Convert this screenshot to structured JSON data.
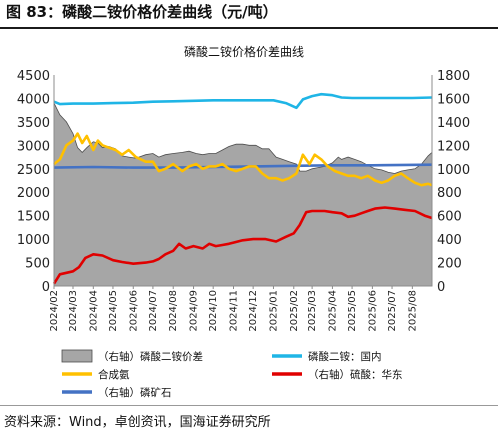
{
  "figure": {
    "title": "图 83：磷酸二铵价格价差曲线（元/吨）",
    "source": "资料来源：Wind，卓创资讯，国海证券研究所"
  },
  "chart_data": {
    "type": "line",
    "title": "磷酸二铵价格价差曲线",
    "left_axis": {
      "min": 0,
      "max": 4500,
      "ticks": [
        0,
        500,
        1000,
        1500,
        2000,
        2500,
        3000,
        3500,
        4000,
        4500
      ]
    },
    "right_axis": {
      "min": 0,
      "max": 1800,
      "ticks": [
        0,
        200,
        400,
        600,
        800,
        1000,
        1200,
        1400,
        1600,
        1800
      ]
    },
    "x_range": [
      "2024-02-01",
      "2025-08-31"
    ],
    "x_ticks": [
      "2024/02",
      "2024/03",
      "2024/04",
      "2024/05",
      "2024/06",
      "2024/07",
      "2024/08",
      "2024/09",
      "2024/10",
      "2024/11",
      "2024/12",
      "2025/01",
      "2025/02",
      "2025/03",
      "2025/04",
      "2025/05",
      "2025/06",
      "2025/07",
      "2025/08"
    ],
    "grid": false,
    "legend_position": "bottom",
    "colors": {
      "spread": "#a6a6a6",
      "dap": "#1fb5e6",
      "ammonia": "#ffc000",
      "sulfuric": "#e00000",
      "rock": "#4472c4"
    },
    "series": [
      {
        "name": "（右轴）磷酸二铵价差",
        "axis": "right",
        "kind": "area",
        "color": "#a6a6a6",
        "points": [
          [
            "2024-02-01",
            1560
          ],
          [
            "2024-02-10",
            1460
          ],
          [
            "2024-02-20",
            1400
          ],
          [
            "2024-03-01",
            1300
          ],
          [
            "2024-03-08",
            1180
          ],
          [
            "2024-03-15",
            1140
          ],
          [
            "2024-03-22",
            1180
          ],
          [
            "2024-04-01",
            1230
          ],
          [
            "2024-04-08",
            1220
          ],
          [
            "2024-04-15",
            1180
          ],
          [
            "2024-04-25",
            1190
          ],
          [
            "2024-05-05",
            1170
          ],
          [
            "2024-05-15",
            1110
          ],
          [
            "2024-05-25",
            1100
          ],
          [
            "2024-06-05",
            1090
          ],
          [
            "2024-06-20",
            1120
          ],
          [
            "2024-07-01",
            1130
          ],
          [
            "2024-07-10",
            1100
          ],
          [
            "2024-07-20",
            1120
          ],
          [
            "2024-08-01",
            1130
          ],
          [
            "2024-08-15",
            1140
          ],
          [
            "2024-08-25",
            1150
          ],
          [
            "2024-09-05",
            1130
          ],
          [
            "2024-09-15",
            1120
          ],
          [
            "2024-09-25",
            1130
          ],
          [
            "2024-10-05",
            1130
          ],
          [
            "2024-10-15",
            1160
          ],
          [
            "2024-10-25",
            1190
          ],
          [
            "2024-11-05",
            1210
          ],
          [
            "2024-11-15",
            1210
          ],
          [
            "2024-11-25",
            1200
          ],
          [
            "2024-12-05",
            1200
          ],
          [
            "2024-12-15",
            1170
          ],
          [
            "2024-12-25",
            1170
          ],
          [
            "2025-01-05",
            1100
          ],
          [
            "2025-01-15",
            1080
          ],
          [
            "2025-01-25",
            1060
          ],
          [
            "2025-02-05",
            1040
          ],
          [
            "2025-02-10",
            980
          ],
          [
            "2025-02-20",
            980
          ],
          [
            "2025-03-01",
            1000
          ],
          [
            "2025-03-10",
            1010
          ],
          [
            "2025-03-20",
            1020
          ],
          [
            "2025-04-01",
            1050
          ],
          [
            "2025-04-10",
            1100
          ],
          [
            "2025-04-15",
            1080
          ],
          [
            "2025-04-25",
            1100
          ],
          [
            "2025-05-05",
            1080
          ],
          [
            "2025-05-15",
            1060
          ],
          [
            "2025-05-25",
            1030
          ],
          [
            "2025-06-05",
            1000
          ],
          [
            "2025-06-15",
            990
          ],
          [
            "2025-06-25",
            970
          ],
          [
            "2025-07-05",
            960
          ],
          [
            "2025-07-15",
            980
          ],
          [
            "2025-07-25",
            990
          ],
          [
            "2025-08-05",
            1000
          ],
          [
            "2025-08-15",
            1040
          ],
          [
            "2025-08-25",
            1110
          ],
          [
            "2025-08-31",
            1140
          ]
        ]
      },
      {
        "name": "磷酸二铵：国内",
        "axis": "left",
        "kind": "line",
        "color": "#1fb5e6",
        "points": [
          [
            "2024-02-01",
            3930
          ],
          [
            "2024-02-10",
            3880
          ],
          [
            "2024-03-01",
            3890
          ],
          [
            "2024-04-01",
            3890
          ],
          [
            "2024-05-01",
            3900
          ],
          [
            "2024-06-01",
            3910
          ],
          [
            "2024-07-01",
            3930
          ],
          [
            "2024-08-01",
            3940
          ],
          [
            "2024-09-01",
            3950
          ],
          [
            "2024-10-01",
            3960
          ],
          [
            "2024-11-01",
            3960
          ],
          [
            "2024-12-01",
            3960
          ],
          [
            "2025-01-01",
            3960
          ],
          [
            "2025-01-20",
            3900
          ],
          [
            "2025-02-05",
            3800
          ],
          [
            "2025-02-15",
            3980
          ],
          [
            "2025-03-01",
            4050
          ],
          [
            "2025-03-15",
            4090
          ],
          [
            "2025-04-01",
            4070
          ],
          [
            "2025-04-15",
            4020
          ],
          [
            "2025-05-01",
            4010
          ],
          [
            "2025-06-01",
            4010
          ],
          [
            "2025-07-01",
            4010
          ],
          [
            "2025-08-01",
            4010
          ],
          [
            "2025-08-31",
            4020
          ]
        ]
      },
      {
        "name": "合成氨",
        "axis": "left",
        "kind": "line",
        "color": "#ffc000",
        "points": [
          [
            "2024-02-01",
            2600
          ],
          [
            "2024-02-10",
            2700
          ],
          [
            "2024-02-20",
            3000
          ],
          [
            "2024-03-01",
            3100
          ],
          [
            "2024-03-08",
            3250
          ],
          [
            "2024-03-15",
            3050
          ],
          [
            "2024-03-22",
            3200
          ],
          [
            "2024-04-01",
            2900
          ],
          [
            "2024-04-08",
            3100
          ],
          [
            "2024-04-15",
            3000
          ],
          [
            "2024-04-25",
            2950
          ],
          [
            "2024-05-05",
            2900
          ],
          [
            "2024-05-15",
            2800
          ],
          [
            "2024-05-25",
            2900
          ],
          [
            "2024-06-05",
            2750
          ],
          [
            "2024-06-20",
            2650
          ],
          [
            "2024-07-01",
            2650
          ],
          [
            "2024-07-10",
            2450
          ],
          [
            "2024-07-20",
            2500
          ],
          [
            "2024-08-01",
            2600
          ],
          [
            "2024-08-15",
            2450
          ],
          [
            "2024-08-25",
            2550
          ],
          [
            "2024-09-05",
            2600
          ],
          [
            "2024-09-15",
            2500
          ],
          [
            "2024-09-25",
            2550
          ],
          [
            "2024-10-05",
            2550
          ],
          [
            "2024-10-15",
            2600
          ],
          [
            "2024-10-25",
            2500
          ],
          [
            "2024-11-05",
            2450
          ],
          [
            "2024-11-15",
            2500
          ],
          [
            "2024-11-25",
            2550
          ],
          [
            "2024-12-05",
            2550
          ],
          [
            "2024-12-15",
            2400
          ],
          [
            "2024-12-25",
            2300
          ],
          [
            "2025-01-05",
            2300
          ],
          [
            "2025-01-15",
            2250
          ],
          [
            "2025-01-25",
            2300
          ],
          [
            "2025-02-05",
            2400
          ],
          [
            "2025-02-15",
            2800
          ],
          [
            "2025-02-25",
            2600
          ],
          [
            "2025-03-05",
            2800
          ],
          [
            "2025-03-15",
            2700
          ],
          [
            "2025-03-25",
            2550
          ],
          [
            "2025-04-05",
            2450
          ],
          [
            "2025-04-15",
            2400
          ],
          [
            "2025-04-25",
            2350
          ],
          [
            "2025-05-05",
            2350
          ],
          [
            "2025-05-15",
            2300
          ],
          [
            "2025-05-25",
            2350
          ],
          [
            "2025-06-05",
            2250
          ],
          [
            "2025-06-15",
            2200
          ],
          [
            "2025-06-25",
            2250
          ],
          [
            "2025-07-05",
            2350
          ],
          [
            "2025-07-15",
            2400
          ],
          [
            "2025-07-25",
            2300
          ],
          [
            "2025-08-05",
            2200
          ],
          [
            "2025-08-15",
            2150
          ],
          [
            "2025-08-25",
            2180
          ],
          [
            "2025-08-31",
            2150
          ]
        ]
      },
      {
        "name": "（右轴）硫酸：华东",
        "axis": "right",
        "kind": "line",
        "color": "#e00000",
        "points": [
          [
            "2024-02-01",
            20
          ],
          [
            "2024-02-10",
            100
          ],
          [
            "2024-03-01",
            125
          ],
          [
            "2024-03-10",
            160
          ],
          [
            "2024-03-20",
            240
          ],
          [
            "2024-04-01",
            270
          ],
          [
            "2024-04-15",
            260
          ],
          [
            "2024-05-01",
            220
          ],
          [
            "2024-05-15",
            205
          ],
          [
            "2024-06-01",
            190
          ],
          [
            "2024-06-20",
            200
          ],
          [
            "2024-07-01",
            210
          ],
          [
            "2024-07-10",
            230
          ],
          [
            "2024-07-20",
            270
          ],
          [
            "2024-08-01",
            300
          ],
          [
            "2024-08-10",
            360
          ],
          [
            "2024-08-20",
            320
          ],
          [
            "2024-09-01",
            340
          ],
          [
            "2024-09-15",
            320
          ],
          [
            "2024-09-25",
            360
          ],
          [
            "2024-10-05",
            340
          ],
          [
            "2024-10-15",
            350
          ],
          [
            "2024-10-25",
            360
          ],
          [
            "2024-11-01",
            370
          ],
          [
            "2024-11-15",
            390
          ],
          [
            "2024-12-01",
            400
          ],
          [
            "2024-12-20",
            400
          ],
          [
            "2025-01-05",
            380
          ],
          [
            "2025-01-20",
            420
          ],
          [
            "2025-02-01",
            450
          ],
          [
            "2025-02-10",
            520
          ],
          [
            "2025-02-20",
            630
          ],
          [
            "2025-03-01",
            640
          ],
          [
            "2025-03-20",
            640
          ],
          [
            "2025-04-01",
            630
          ],
          [
            "2025-04-15",
            620
          ],
          [
            "2025-04-25",
            590
          ],
          [
            "2025-05-05",
            600
          ],
          [
            "2025-05-15",
            620
          ],
          [
            "2025-05-25",
            640
          ],
          [
            "2025-06-05",
            660
          ],
          [
            "2025-06-20",
            670
          ],
          [
            "2025-07-05",
            660
          ],
          [
            "2025-07-20",
            650
          ],
          [
            "2025-08-05",
            640
          ],
          [
            "2025-08-20",
            600
          ],
          [
            "2025-08-31",
            580
          ]
        ]
      },
      {
        "name": "（右轴）磷矿石",
        "axis": "right",
        "kind": "line",
        "color": "#4472c4",
        "points": [
          [
            "2024-02-01",
            1010
          ],
          [
            "2024-04-01",
            1015
          ],
          [
            "2024-06-01",
            1010
          ],
          [
            "2024-08-01",
            1010
          ],
          [
            "2024-10-01",
            1015
          ],
          [
            "2024-12-01",
            1020
          ],
          [
            "2025-02-01",
            1025
          ],
          [
            "2025-04-01",
            1030
          ],
          [
            "2025-06-01",
            1030
          ],
          [
            "2025-08-31",
            1035
          ]
        ]
      }
    ]
  }
}
